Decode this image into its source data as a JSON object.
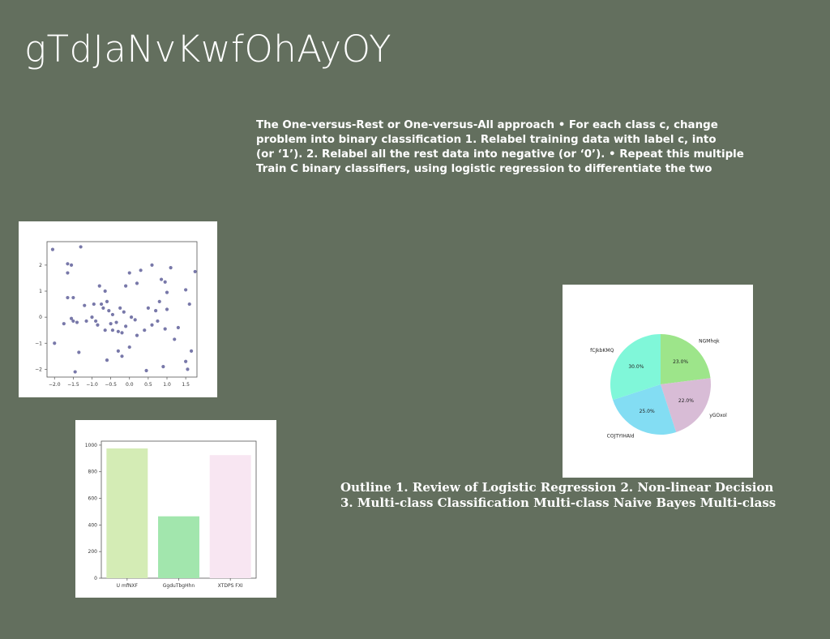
{
  "slide": {
    "title": "gTdJaNvKwfOhAyOY",
    "paragraph1_lines": [
      "The One-versus-Rest or One-versus-All approach • For each class c, change",
      "problem into binary classification 1. Relabel training data with label c, into",
      "(or ‘1’). 2. Relabel all the rest data into negative (or ‘0’). • Repeat this multiple",
      "Train C binary classifiers, using logistic regression to differentiate the two"
    ],
    "paragraph2_lines": [
      "Outline 1. Review of Logistic Regression 2. Non-linear Decision",
      "3. Multi-class Classification Multi-class Naive Bayes Multi-class"
    ]
  },
  "chart_data": [
    {
      "type": "scatter",
      "color": "#4b4b8c",
      "xticks": [
        "−2.0",
        "−1.5",
        "−1.0",
        "−0.5",
        "0.0",
        "0.5",
        "1.0",
        "1.5"
      ],
      "yticks": [
        "−2",
        "−1",
        "0",
        "1",
        "2"
      ],
      "xlim": [
        -2.2,
        1.8
      ],
      "ylim": [
        -2.3,
        2.9
      ],
      "points": [
        [
          -2.05,
          2.6
        ],
        [
          -1.3,
          2.7
        ],
        [
          -1.65,
          2.05
        ],
        [
          -1.55,
          2.0
        ],
        [
          -1.65,
          1.7
        ],
        [
          -1.5,
          0.75
        ],
        [
          -1.65,
          0.75
        ],
        [
          -1.2,
          0.45
        ],
        [
          -1.55,
          -0.05
        ],
        [
          -1.5,
          -0.15
        ],
        [
          -1.75,
          -0.25
        ],
        [
          -1.4,
          -0.2
        ],
        [
          -1.15,
          -0.15
        ],
        [
          -1.35,
          -1.35
        ],
        [
          -1.45,
          -2.1
        ],
        [
          -2.0,
          -1.0
        ],
        [
          -0.8,
          1.2
        ],
        [
          -0.65,
          1.0
        ],
        [
          -0.75,
          0.5
        ],
        [
          -0.6,
          0.6
        ],
        [
          -0.55,
          0.25
        ],
        [
          -0.45,
          0.1
        ],
        [
          -0.7,
          0.35
        ],
        [
          -0.95,
          0.5
        ],
        [
          -1.0,
          0.0
        ],
        [
          -0.85,
          -0.3
        ],
        [
          -0.65,
          -0.5
        ],
        [
          -0.45,
          -0.5
        ],
        [
          -0.3,
          -0.55
        ],
        [
          -0.2,
          -0.6
        ],
        [
          -0.35,
          -0.2
        ],
        [
          -0.1,
          -0.35
        ],
        [
          -0.25,
          0.35
        ],
        [
          -0.15,
          0.2
        ],
        [
          0.05,
          0.0
        ],
        [
          0.15,
          -0.1
        ],
        [
          0.0,
          1.7
        ],
        [
          -0.1,
          1.2
        ],
        [
          0.3,
          1.8
        ],
        [
          0.6,
          2.0
        ],
        [
          0.2,
          1.3
        ],
        [
          0.5,
          0.35
        ],
        [
          0.7,
          0.25
        ],
        [
          0.85,
          1.45
        ],
        [
          0.95,
          1.35
        ],
        [
          1.0,
          0.95
        ],
        [
          1.1,
          1.9
        ],
        [
          0.8,
          0.6
        ],
        [
          1.0,
          0.3
        ],
        [
          0.6,
          -0.3
        ],
        [
          0.4,
          -0.5
        ],
        [
          0.2,
          -0.7
        ],
        [
          0.0,
          -1.15
        ],
        [
          -0.3,
          -1.3
        ],
        [
          -0.2,
          -1.5
        ],
        [
          -0.6,
          -1.65
        ],
        [
          0.45,
          -2.05
        ],
        [
          0.9,
          -1.9
        ],
        [
          1.5,
          -1.7
        ],
        [
          1.55,
          -2.0
        ],
        [
          1.65,
          -1.3
        ],
        [
          1.5,
          1.05
        ],
        [
          1.75,
          1.75
        ],
        [
          1.6,
          0.5
        ],
        [
          1.3,
          -0.4
        ],
        [
          1.2,
          -0.85
        ],
        [
          0.95,
          -0.45
        ],
        [
          0.75,
          -0.15
        ],
        [
          -0.9,
          -0.15
        ],
        [
          -0.5,
          -0.25
        ]
      ]
    },
    {
      "type": "bar",
      "categories": [
        "U mfNXF",
        "GgduTbgHhn",
        "XTDPS FXI"
      ],
      "values": [
        975,
        465,
        925
      ],
      "colors": [
        "#d4ecb5",
        "#a2e6ad",
        "#f8e6f2"
      ],
      "yticks": [
        "0",
        "200",
        "400",
        "600",
        "800",
        "1000"
      ],
      "ylim": [
        0,
        1030
      ]
    },
    {
      "type": "pie",
      "labels": [
        "NGMhqk",
        "yGOxol",
        "COJTYIHAId",
        "fCJkbKMQ"
      ],
      "values": [
        23.0,
        22.0,
        25.0,
        30.0
      ],
      "pct_labels": [
        "23.0%",
        "22.0%",
        "25.0%",
        "30.0%"
      ],
      "colors": [
        "#9de58a",
        "#d8bcd6",
        "#83ddf3",
        "#80f7d9"
      ]
    }
  ]
}
